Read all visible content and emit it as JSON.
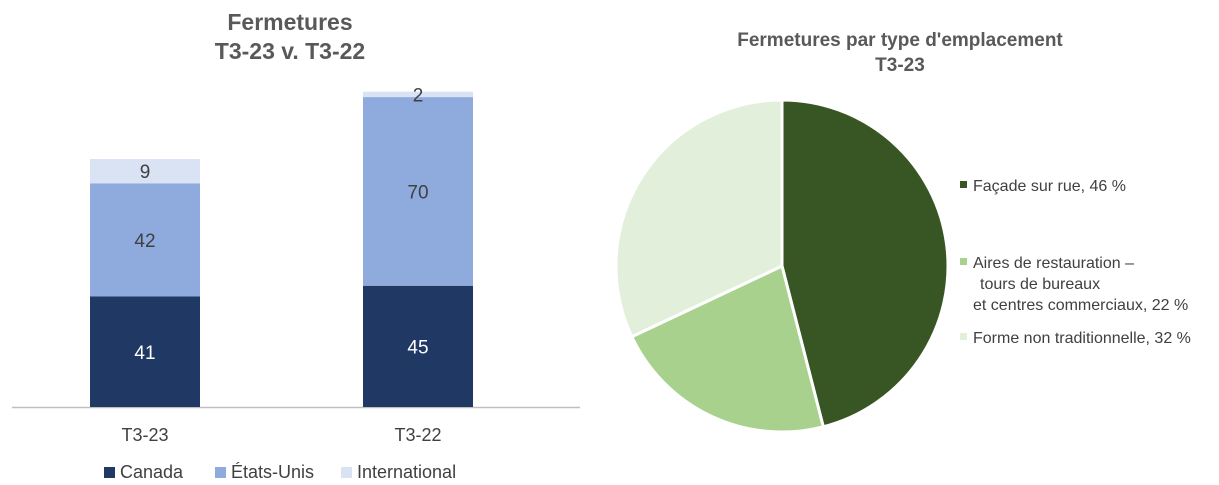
{
  "chart_data": [
    {
      "type": "bar",
      "stacked": true,
      "title_lines": [
        "Fermetures",
        "T3-23 v. T3-22"
      ],
      "categories": [
        "T3-23",
        "T3-22"
      ],
      "series": [
        {
          "name": "Canada",
          "values": [
            41,
            45
          ],
          "color": "#1f3864",
          "label_color": "#ffffff"
        },
        {
          "name": "États-Unis",
          "values": [
            42,
            70
          ],
          "color": "#8faadc",
          "label_color": "#404040"
        },
        {
          "name": "International",
          "values": [
            9,
            2
          ],
          "color": "#dae3f3",
          "label_color": "#404040"
        }
      ],
      "ylim": [
        0,
        118
      ],
      "legend_position": "bottom",
      "grid": false
    },
    {
      "type": "pie",
      "title_lines": [
        "Fermetures par type d'emplacement",
        "T3-23"
      ],
      "slices": [
        {
          "label": "Façade sur rue, 46 %",
          "value": 46,
          "color": "#375623"
        },
        {
          "label": "Aires de restauration – tours de bureaux et centres commerciaux, 22 %",
          "label_lines": [
            "Aires de restauration –",
            "tours de bureaux",
            "et centres commerciaux, 22 %"
          ],
          "value": 22,
          "color": "#a9d18e"
        },
        {
          "label": "Forme non traditionnelle, 32 %",
          "value": 32,
          "color": "#e2efda"
        }
      ],
      "start_angle_deg": 0,
      "direction": "clockwise",
      "legend_position": "right"
    }
  ]
}
